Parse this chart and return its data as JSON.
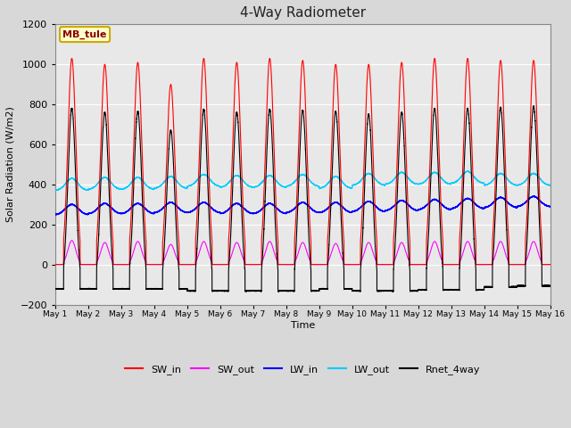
{
  "title": "4-Way Radiometer",
  "xlabel": "Time",
  "ylabel": "Solar Radiation (W/m2)",
  "ylim": [
    -200,
    1200
  ],
  "yticks": [
    -200,
    0,
    200,
    400,
    600,
    800,
    1000,
    1200
  ],
  "n_days": 15,
  "label_text": "MB_tule",
  "colors": {
    "SW_in": "#ff0000",
    "SW_out": "#ff00ff",
    "LW_in": "#0000ff",
    "LW_out": "#00ccff",
    "Rnet_4way": "#000000"
  },
  "sw_peaks": [
    1030,
    1000,
    1010,
    900,
    1030,
    1010,
    1030,
    1020,
    1000,
    1000,
    1010,
    1030,
    1030,
    1020,
    1020
  ],
  "sw_out_peaks": [
    120,
    110,
    115,
    100,
    115,
    110,
    115,
    110,
    105,
    110,
    110,
    115,
    115,
    115,
    115
  ],
  "lw_in_base": [
    265,
    270,
    270,
    275,
    275,
    270,
    270,
    275,
    275,
    280,
    285,
    290,
    295,
    300,
    305
  ],
  "lw_out_base": [
    370,
    375,
    375,
    380,
    390,
    385,
    385,
    390,
    380,
    395,
    400,
    400,
    405,
    395,
    395
  ],
  "rnet_night": [
    -80,
    -80,
    -80,
    -120,
    -120,
    -100,
    -100,
    -100,
    -100,
    -100,
    -100,
    -100,
    -100,
    -100,
    -75
  ],
  "bg_color": "#d8d8d8",
  "plot_bg_color": "#e8e8e8"
}
